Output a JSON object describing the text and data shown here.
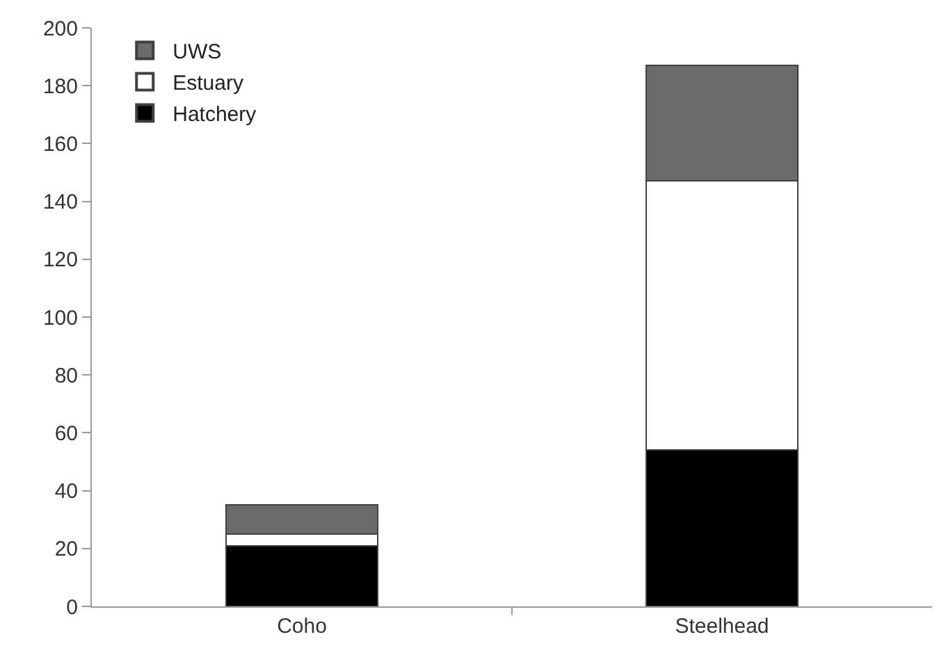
{
  "chart_data": {
    "type": "bar",
    "stacked": true,
    "categories": [
      "Coho",
      "Steelhead"
    ],
    "series": [
      {
        "name": "Hatchery",
        "color": "#000000",
        "values": [
          21,
          54
        ]
      },
      {
        "name": "Estuary",
        "color": "#ffffff",
        "values": [
          4,
          93
        ]
      },
      {
        "name": "UWS",
        "color": "#6b6b6b",
        "values": [
          10,
          40
        ]
      }
    ],
    "ylim": [
      0,
      200
    ],
    "yticks": [
      0,
      20,
      40,
      60,
      80,
      100,
      120,
      140,
      160,
      180,
      200
    ],
    "grid": false,
    "legend": "top left"
  }
}
